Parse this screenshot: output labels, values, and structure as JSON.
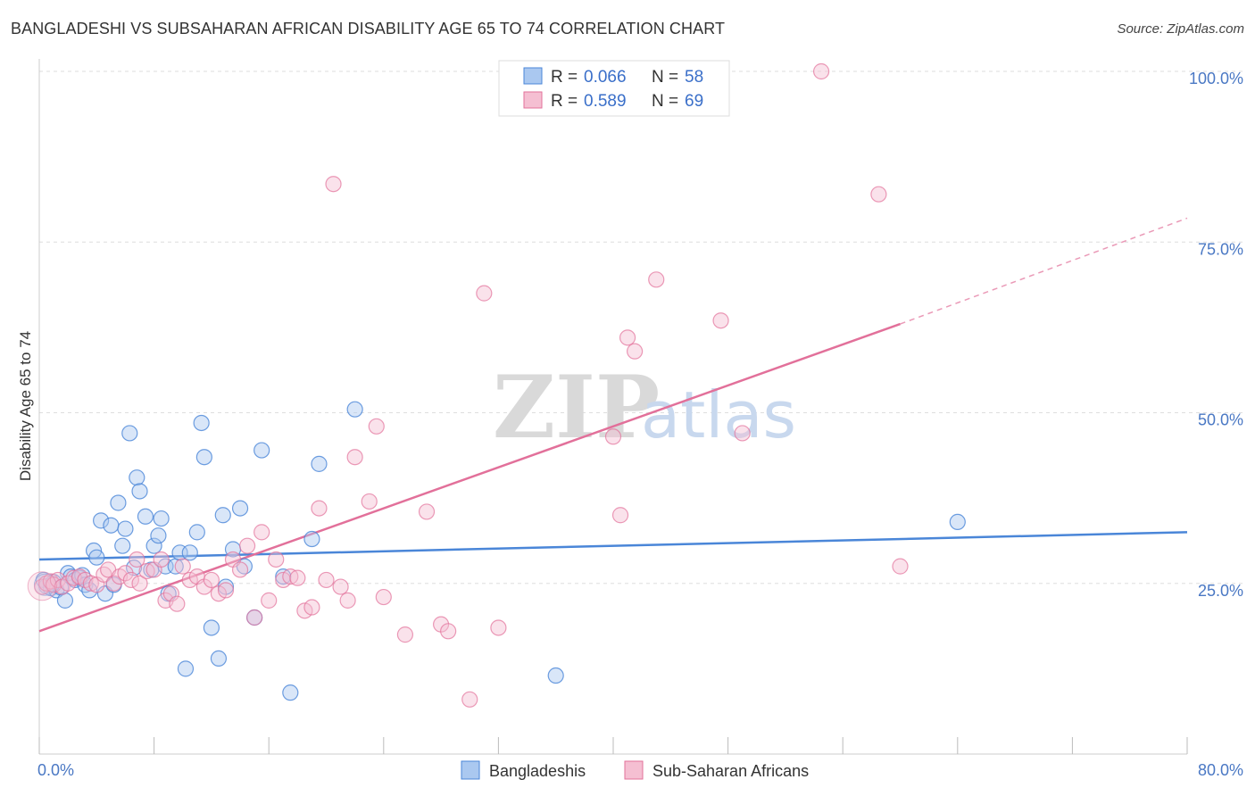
{
  "title": "BANGLADESHI VS SUBSAHARAN AFRICAN DISABILITY AGE 65 TO 74 CORRELATION CHART",
  "source": "Source: ZipAtlas.com",
  "watermark": {
    "zip": "ZIP",
    "atlas": "atlas"
  },
  "legend": {
    "rows": [
      {
        "r_label": "R = ",
        "r_value": "0.066",
        "n_label": "N = ",
        "n_value": "58"
      },
      {
        "r_label": "R = ",
        "r_value": "0.589",
        "n_label": "N = ",
        "n_value": "69"
      }
    ]
  },
  "bottom_legend": {
    "bangladeshis": "Bangladeshis",
    "subsaharan": "Sub-Saharan Africans"
  },
  "chart_data": {
    "type": "scatter",
    "title": "BANGLADESHI VS SUBSAHARAN AFRICAN DISABILITY AGE 65 TO 74 CORRELATION CHART",
    "xlabel": "",
    "ylabel": "Disability Age 65 to 74",
    "xlim": [
      0,
      80
    ],
    "ylim": [
      0,
      100
    ],
    "x_tick_labels": [
      "0.0%",
      "80.0%"
    ],
    "y_tick_labels": [
      "25.0%",
      "50.0%",
      "75.0%",
      "100.0%"
    ],
    "y_ticks": [
      25,
      50,
      75,
      100
    ],
    "grid": true,
    "colors": {
      "bangladeshis": "#4a86d8",
      "subsaharan": "#e2709a",
      "bangladeshis_fill": "#aac8f0",
      "subsaharan_fill": "#f5bfd2"
    },
    "series": [
      {
        "name": "Bangladeshis",
        "R": 0.066,
        "N": 58,
        "trend": {
          "x0": 0,
          "y0": 28.5,
          "x1": 80,
          "y1": 32.5
        },
        "points": [
          [
            0.3,
            25.5
          ],
          [
            0.5,
            24.6
          ],
          [
            0.8,
            24.3
          ],
          [
            1.0,
            25.2
          ],
          [
            1.2,
            24.0
          ],
          [
            1.5,
            24.4
          ],
          [
            1.8,
            22.5
          ],
          [
            2.0,
            26.5
          ],
          [
            2.2,
            26.0
          ],
          [
            2.5,
            25.5
          ],
          [
            2.8,
            25.8
          ],
          [
            3.0,
            26.2
          ],
          [
            3.2,
            24.8
          ],
          [
            3.5,
            24.0
          ],
          [
            3.8,
            29.8
          ],
          [
            4.0,
            28.8
          ],
          [
            4.3,
            34.2
          ],
          [
            4.6,
            23.5
          ],
          [
            5.0,
            33.5
          ],
          [
            5.2,
            24.8
          ],
          [
            5.5,
            36.8
          ],
          [
            5.8,
            30.5
          ],
          [
            6.0,
            33.0
          ],
          [
            6.3,
            47.0
          ],
          [
            6.6,
            27.3
          ],
          [
            6.8,
            40.5
          ],
          [
            7.0,
            38.5
          ],
          [
            7.4,
            34.8
          ],
          [
            7.8,
            27.0
          ],
          [
            8.0,
            30.5
          ],
          [
            8.3,
            32.0
          ],
          [
            8.5,
            34.5
          ],
          [
            8.8,
            27.5
          ],
          [
            9.0,
            23.5
          ],
          [
            9.5,
            27.5
          ],
          [
            9.8,
            29.5
          ],
          [
            10.2,
            12.5
          ],
          [
            10.5,
            29.5
          ],
          [
            11.0,
            32.5
          ],
          [
            11.3,
            48.5
          ],
          [
            11.5,
            43.5
          ],
          [
            12.0,
            18.5
          ],
          [
            12.5,
            14.0
          ],
          [
            12.8,
            35.0
          ],
          [
            13.0,
            24.5
          ],
          [
            13.5,
            30.0
          ],
          [
            14.0,
            36.0
          ],
          [
            14.3,
            27.5
          ],
          [
            15.0,
            20.0
          ],
          [
            15.5,
            44.5
          ],
          [
            17.0,
            26.0
          ],
          [
            17.5,
            9.0
          ],
          [
            19.0,
            31.5
          ],
          [
            19.5,
            42.5
          ],
          [
            22.0,
            50.5
          ],
          [
            36.0,
            11.5
          ],
          [
            64.0,
            34.0
          ],
          [
            0.9,
            24.9
          ]
        ]
      },
      {
        "name": "Sub-Saharan Africans",
        "R": 0.589,
        "N": 69,
        "trend": {
          "x0": 0,
          "y0": 18.0,
          "x1": 60,
          "y1": 63.0,
          "dash_x1": 80,
          "dash_y1": 78.5
        },
        "points": [
          [
            0.2,
            24.5
          ],
          [
            0.5,
            25.0
          ],
          [
            0.8,
            25.3
          ],
          [
            1.0,
            24.8
          ],
          [
            1.3,
            25.5
          ],
          [
            1.6,
            24.5
          ],
          [
            2.0,
            25.0
          ],
          [
            2.4,
            25.8
          ],
          [
            2.8,
            26.0
          ],
          [
            3.2,
            25.5
          ],
          [
            3.6,
            25.0
          ],
          [
            4.0,
            24.8
          ],
          [
            4.5,
            26.3
          ],
          [
            4.8,
            27.0
          ],
          [
            5.2,
            25.0
          ],
          [
            5.6,
            26.0
          ],
          [
            6.0,
            26.5
          ],
          [
            6.4,
            25.5
          ],
          [
            6.8,
            28.5
          ],
          [
            7.0,
            25.0
          ],
          [
            7.5,
            26.8
          ],
          [
            8.0,
            27.0
          ],
          [
            8.5,
            28.5
          ],
          [
            8.8,
            22.5
          ],
          [
            9.2,
            23.5
          ],
          [
            9.6,
            22.0
          ],
          [
            10.0,
            27.5
          ],
          [
            10.5,
            25.5
          ],
          [
            11.0,
            26.0
          ],
          [
            11.5,
            24.5
          ],
          [
            12.0,
            25.5
          ],
          [
            12.5,
            23.5
          ],
          [
            13.0,
            24.0
          ],
          [
            13.5,
            28.5
          ],
          [
            14.0,
            27.0
          ],
          [
            14.5,
            30.5
          ],
          [
            15.0,
            20.0
          ],
          [
            15.5,
            32.5
          ],
          [
            16.0,
            22.5
          ],
          [
            16.5,
            28.5
          ],
          [
            17.0,
            25.5
          ],
          [
            17.5,
            26.0
          ],
          [
            18.0,
            25.8
          ],
          [
            18.5,
            21.0
          ],
          [
            19.0,
            21.5
          ],
          [
            19.5,
            36.0
          ],
          [
            20.0,
            25.5
          ],
          [
            20.5,
            83.5
          ],
          [
            21.0,
            24.5
          ],
          [
            21.5,
            22.5
          ],
          [
            22.0,
            43.5
          ],
          [
            23.0,
            37.0
          ],
          [
            23.5,
            48.0
          ],
          [
            24.0,
            23.0
          ],
          [
            25.5,
            17.5
          ],
          [
            27.0,
            35.5
          ],
          [
            28.0,
            19.0
          ],
          [
            28.5,
            18.0
          ],
          [
            30.0,
            8.0
          ],
          [
            31.0,
            67.5
          ],
          [
            32.0,
            18.5
          ],
          [
            40.0,
            46.5
          ],
          [
            40.5,
            35.0
          ],
          [
            41.0,
            61.0
          ],
          [
            41.5,
            59.0
          ],
          [
            43.0,
            69.5
          ],
          [
            47.5,
            63.5
          ],
          [
            49.0,
            47.0
          ],
          [
            60.0,
            27.5
          ]
        ],
        "extra_points": [
          [
            54.5,
            100.0
          ],
          [
            58.5,
            82.0
          ]
        ]
      }
    ]
  }
}
